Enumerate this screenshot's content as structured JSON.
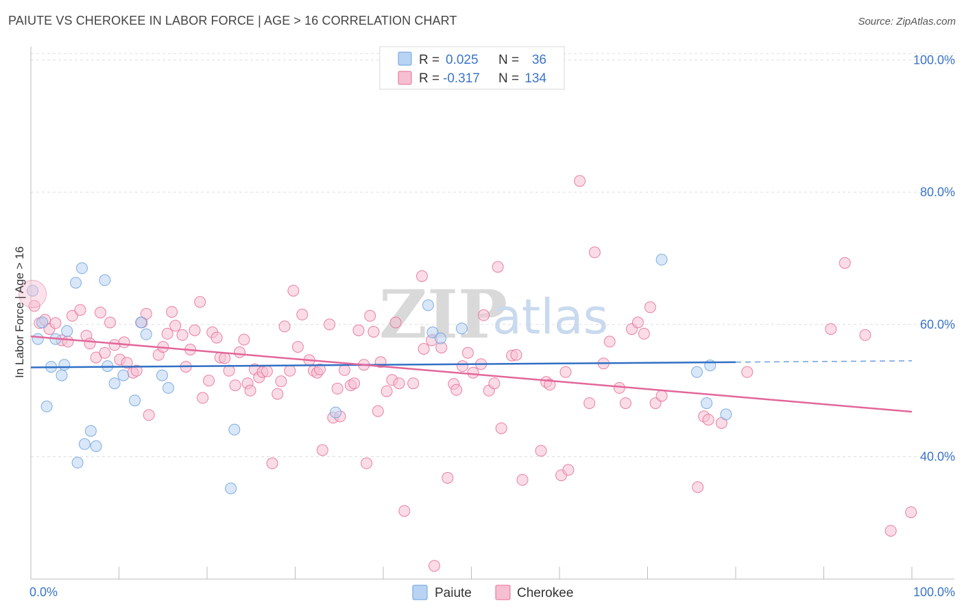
{
  "header": {
    "title": "PAIUTE VS CHEROKEE IN LABOR FORCE | AGE > 16 CORRELATION CHART",
    "source": "Source: ZipAtlas.com"
  },
  "watermark": {
    "zip": "ZIP",
    "atlas": "atlas"
  },
  "colors": {
    "paiute": "#6a9fde",
    "paiute_fill": "#b9d3f3",
    "cherokee": "#e66b95",
    "cherokee_fill": "#f6bfd1",
    "axis_text": "#3a74c7",
    "grid": "#dddddd"
  },
  "legend_top": {
    "paiute": {
      "r_label": "R =",
      "r_value": "0.025",
      "n_label": "N =",
      "n_value": "36"
    },
    "cherokee": {
      "r_label": "R =",
      "r_value": "-0.317",
      "n_label": "N =",
      "n_value": "134"
    }
  },
  "legend_bottom": {
    "paiute": "Paiute",
    "cherokee": "Cherokee"
  },
  "chart_data": {
    "type": "scatter",
    "title": "PAIUTE VS CHEROKEE IN LABOR FORCE | AGE > 16 CORRELATION CHART",
    "xlabel": "",
    "ylabel": "In Labor Force | Age > 16",
    "xlim": [
      0,
      100
    ],
    "ylim": [
      21.5,
      102
    ],
    "x_tick_labels": [
      "0.0%",
      "100.0%"
    ],
    "y_ticks": [
      40,
      60,
      80,
      100
    ],
    "y_tick_labels": [
      "40.0%",
      "60.0%",
      "80.0%",
      "100.0%"
    ],
    "grid": true,
    "legend_position": "top-center",
    "series": [
      {
        "name": "Paiute",
        "color": "#6a9fde",
        "trend": {
          "x": [
            0,
            80
          ],
          "y": [
            53.5,
            54.3
          ],
          "dashed_to": [
            100,
            54.5
          ]
        },
        "points": [
          [
            0.2,
            65.1
          ],
          [
            0.8,
            57.8
          ],
          [
            1.3,
            60.3
          ],
          [
            1.8,
            47.6
          ],
          [
            2.3,
            53.6
          ],
          [
            2.8,
            57.8
          ],
          [
            3.5,
            52.3
          ],
          [
            3.8,
            53.9
          ],
          [
            4.1,
            59.0
          ],
          [
            5.1,
            66.3
          ],
          [
            5.3,
            39.1
          ],
          [
            5.8,
            68.5
          ],
          [
            6.1,
            41.9
          ],
          [
            6.8,
            43.9
          ],
          [
            7.4,
            41.6
          ],
          [
            8.4,
            66.7
          ],
          [
            8.7,
            53.7
          ],
          [
            9.5,
            51.1
          ],
          [
            10.5,
            52.3
          ],
          [
            11.8,
            48.5
          ],
          [
            12.5,
            60.3
          ],
          [
            13.1,
            58.5
          ],
          [
            14.9,
            52.3
          ],
          [
            15.6,
            50.4
          ],
          [
            22.7,
            35.2
          ],
          [
            23.1,
            44.1
          ],
          [
            34.6,
            46.7
          ],
          [
            45.1,
            62.9
          ],
          [
            45.6,
            58.8
          ],
          [
            46.5,
            57.9
          ],
          [
            48.9,
            59.4
          ],
          [
            71.6,
            69.8
          ],
          [
            77.1,
            53.8
          ],
          [
            75.6,
            52.8
          ],
          [
            76.7,
            48.1
          ],
          [
            78.9,
            46.4
          ]
        ]
      },
      {
        "name": "Cherokee",
        "color": "#e66b95",
        "trend": {
          "x": [
            0,
            100
          ],
          "y": [
            58.2,
            46.8
          ]
        },
        "points": [
          [
            0.4,
            62.8
          ],
          [
            1.0,
            60.2
          ],
          [
            1.6,
            60.7
          ],
          [
            2.1,
            59.3
          ],
          [
            2.8,
            60.2
          ],
          [
            3.5,
            57.6
          ],
          [
            4.2,
            57.4
          ],
          [
            4.7,
            61.3
          ],
          [
            5.6,
            62.2
          ],
          [
            6.3,
            58.3
          ],
          [
            6.7,
            57.1
          ],
          [
            7.4,
            55.0
          ],
          [
            7.9,
            61.8
          ],
          [
            8.4,
            55.7
          ],
          [
            9.0,
            60.3
          ],
          [
            9.5,
            56.9
          ],
          [
            10.1,
            54.7
          ],
          [
            10.6,
            57.3
          ],
          [
            10.9,
            54.2
          ],
          [
            11.6,
            52.7
          ],
          [
            12.0,
            53.0
          ],
          [
            12.6,
            60.3
          ],
          [
            13.1,
            61.6
          ],
          [
            13.4,
            46.3
          ],
          [
            14.5,
            55.4
          ],
          [
            15.0,
            56.6
          ],
          [
            15.5,
            58.6
          ],
          [
            16.0,
            61.9
          ],
          [
            16.4,
            59.8
          ],
          [
            17.2,
            58.4
          ],
          [
            17.6,
            53.6
          ],
          [
            18.1,
            56.2
          ],
          [
            18.6,
            59.1
          ],
          [
            19.2,
            63.4
          ],
          [
            19.5,
            48.9
          ],
          [
            20.2,
            51.5
          ],
          [
            20.6,
            58.8
          ],
          [
            21.1,
            58.0
          ],
          [
            21.5,
            55.0
          ],
          [
            22.0,
            54.9
          ],
          [
            22.5,
            53.0
          ],
          [
            23.2,
            50.8
          ],
          [
            23.7,
            55.8
          ],
          [
            24.2,
            57.7
          ],
          [
            24.6,
            51.1
          ],
          [
            24.9,
            50.0
          ],
          [
            25.4,
            53.2
          ],
          [
            25.9,
            52.0
          ],
          [
            26.3,
            52.8
          ],
          [
            26.8,
            52.9
          ],
          [
            27.4,
            39.0
          ],
          [
            28.0,
            49.5
          ],
          [
            28.4,
            51.4
          ],
          [
            28.8,
            59.7
          ],
          [
            29.4,
            53.0
          ],
          [
            29.8,
            65.1
          ],
          [
            30.3,
            56.6
          ],
          [
            30.8,
            61.5
          ],
          [
            31.6,
            54.6
          ],
          [
            32.1,
            53.0
          ],
          [
            32.5,
            52.7
          ],
          [
            32.8,
            53.2
          ],
          [
            33.1,
            41.0
          ],
          [
            33.9,
            60.0
          ],
          [
            34.3,
            45.9
          ],
          [
            34.8,
            50.3
          ],
          [
            35.1,
            46.1
          ],
          [
            35.6,
            53.1
          ],
          [
            36.3,
            50.8
          ],
          [
            36.7,
            51.1
          ],
          [
            37.2,
            59.1
          ],
          [
            37.8,
            53.9
          ],
          [
            38.1,
            39.0
          ],
          [
            38.5,
            61.3
          ],
          [
            38.9,
            58.9
          ],
          [
            39.4,
            46.9
          ],
          [
            39.7,
            54.3
          ],
          [
            40.4,
            49.9
          ],
          [
            41.0,
            51.6
          ],
          [
            41.4,
            60.3
          ],
          [
            41.8,
            51.1
          ],
          [
            42.4,
            31.8
          ],
          [
            43.4,
            51.1
          ],
          [
            44.4,
            67.3
          ],
          [
            44.6,
            56.3
          ],
          [
            45.5,
            57.6
          ],
          [
            45.8,
            23.5
          ],
          [
            46.6,
            56.5
          ],
          [
            47.3,
            36.8
          ],
          [
            48.0,
            51.0
          ],
          [
            48.3,
            50.1
          ],
          [
            49.0,
            53.7
          ],
          [
            49.6,
            55.7
          ],
          [
            50.2,
            52.7
          ],
          [
            51.1,
            54.0
          ],
          [
            51.4,
            61.4
          ],
          [
            52.0,
            50.0
          ],
          [
            52.6,
            51.1
          ],
          [
            53.0,
            68.7
          ],
          [
            53.4,
            44.3
          ],
          [
            54.6,
            55.3
          ],
          [
            55.1,
            55.4
          ],
          [
            55.8,
            36.5
          ],
          [
            57.9,
            40.9
          ],
          [
            58.5,
            51.3
          ],
          [
            58.9,
            50.9
          ],
          [
            60.2,
            37.2
          ],
          [
            60.7,
            52.8
          ],
          [
            61.0,
            38.0
          ],
          [
            62.3,
            81.7
          ],
          [
            63.4,
            48.1
          ],
          [
            64.0,
            70.9
          ],
          [
            65.0,
            54.1
          ],
          [
            65.7,
            57.4
          ],
          [
            66.8,
            50.4
          ],
          [
            67.5,
            48.1
          ],
          [
            68.2,
            59.3
          ],
          [
            68.9,
            60.3
          ],
          [
            69.6,
            58.6
          ],
          [
            70.3,
            62.6
          ],
          [
            70.9,
            48.1
          ],
          [
            71.6,
            49.2
          ],
          [
            75.7,
            35.4
          ],
          [
            76.4,
            46.1
          ],
          [
            76.9,
            45.6
          ],
          [
            78.4,
            45.1
          ],
          [
            81.3,
            52.8
          ],
          [
            90.8,
            59.3
          ],
          [
            92.4,
            69.3
          ],
          [
            94.7,
            58.4
          ],
          [
            97.6,
            28.8
          ],
          [
            99.9,
            31.6
          ]
        ]
      }
    ]
  }
}
